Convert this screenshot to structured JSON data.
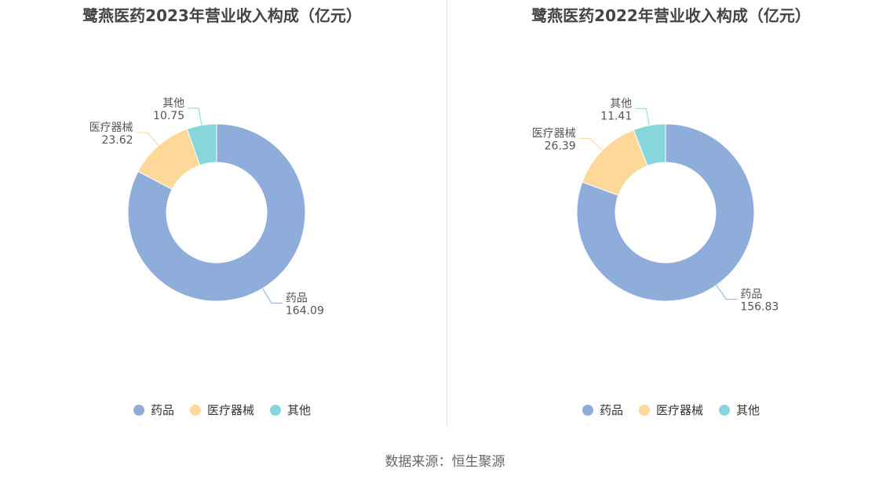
{
  "colors": {
    "药品": "#8eaddb",
    "医疗器械": "#fdd898",
    "其他": "#87d6dc"
  },
  "source": "数据来源：恒生聚源",
  "chart_data": [
    {
      "type": "pie",
      "title": "鹭燕医药2023年营业收入构成（亿元）",
      "categories": [
        "药品",
        "医疗器械",
        "其他"
      ],
      "values": [
        164.09,
        23.62,
        10.75
      ],
      "legend": "bottom"
    },
    {
      "type": "pie",
      "title": "鹭燕医药2022年营业收入构成（亿元）",
      "categories": [
        "药品",
        "医疗器械",
        "其他"
      ],
      "values": [
        156.83,
        26.39,
        11.41
      ],
      "legend": "bottom"
    }
  ]
}
